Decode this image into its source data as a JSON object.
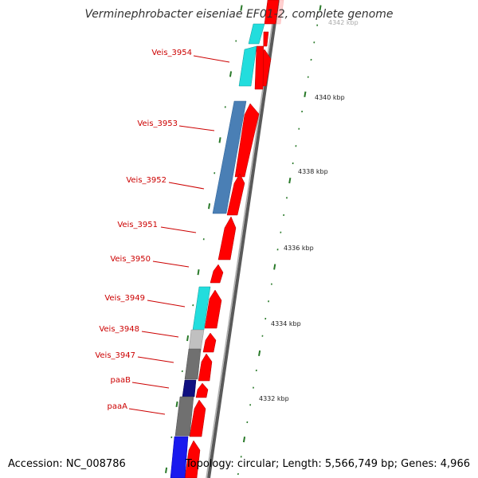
{
  "title": "Verminephrobacter eiseniae EF01-2, complete genome",
  "footer": {
    "accession": "Accession: NC_008786",
    "summary": "Topology: circular; Length: 5,566,749 bp; Genes: 4,966"
  },
  "colors": {
    "forward_gene": "#ff0000",
    "backbone": "#888888",
    "tick": "#2a7a2a",
    "label": "#cc0000",
    "cyan": "#22dddd",
    "steel_blue": "#4a7fb5",
    "light_gray": "#c0c0c0",
    "dark_gray": "#707070",
    "navy": "#101080",
    "blue": "#1a1aee",
    "pale": "#ffd0d0"
  },
  "scale_labels": [
    {
      "text": "4342 kbp",
      "kbp": 4342
    },
    {
      "text": "4340 kbp",
      "kbp": 4340
    },
    {
      "text": "4338 kbp",
      "kbp": 4338
    },
    {
      "text": "4336 kbp",
      "kbp": 4336
    },
    {
      "text": "4334 kbp",
      "kbp": 4334
    },
    {
      "text": "4332 kbp",
      "kbp": 4332
    }
  ],
  "gene_labels": [
    {
      "text": "Veis_3954"
    },
    {
      "text": "Veis_3953"
    },
    {
      "text": "Veis_3952"
    },
    {
      "text": "Veis_3951"
    },
    {
      "text": "Veis_3950"
    },
    {
      "text": "Veis_3949"
    },
    {
      "text": "Veis_3948"
    },
    {
      "text": "Veis_3947"
    },
    {
      "text": "paaB"
    },
    {
      "text": "paaA"
    }
  ],
  "cog_blocks": [
    {
      "color": "cyan"
    },
    {
      "color": "cyan"
    },
    {
      "color": "steel_blue"
    },
    {
      "color": "cyan"
    },
    {
      "color": "light_gray"
    },
    {
      "color": "dark_gray"
    },
    {
      "color": "navy"
    },
    {
      "color": "dark_gray"
    },
    {
      "color": "blue"
    }
  ]
}
